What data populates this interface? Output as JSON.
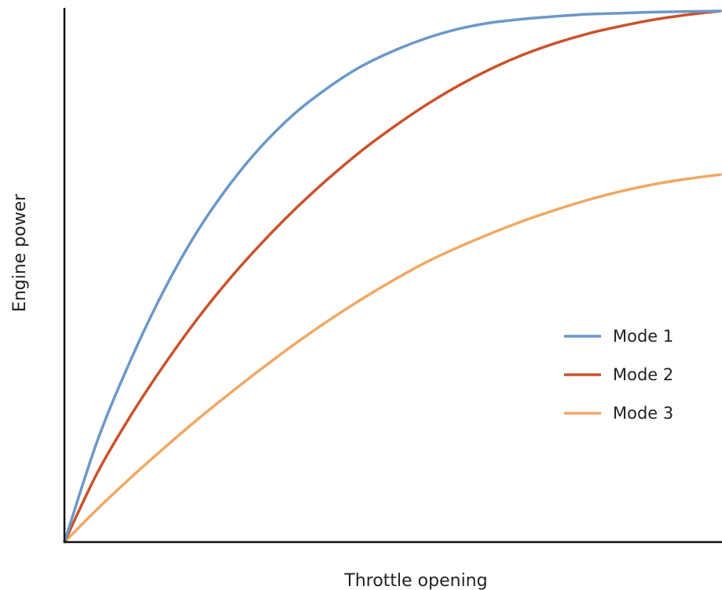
{
  "chart_data": {
    "type": "line",
    "title": "",
    "xlabel": "Throttle opening",
    "ylabel": "Engine power",
    "xlim": [
      0,
      100
    ],
    "ylim": [
      0,
      100
    ],
    "grid": false,
    "legend_position": "center-right",
    "series": [
      {
        "name": "Mode 1",
        "color": "#6b98c8",
        "x": [
          0,
          5,
          10,
          15,
          20,
          25,
          30,
          35,
          40,
          45,
          50,
          55,
          60,
          65,
          70,
          75,
          80,
          85,
          90,
          95,
          100
        ],
        "y": [
          0,
          19,
          34,
          47,
          58,
          67,
          74.5,
          80.6,
          85.4,
          89.4,
          92.4,
          94.8,
          96.6,
          97.8,
          98.5,
          99,
          99.4,
          99.6,
          99.8,
          99.9,
          100
        ]
      },
      {
        "name": "Mode 2",
        "color": "#c9532b",
        "x": [
          0,
          5,
          10,
          15,
          20,
          25,
          30,
          35,
          40,
          45,
          50,
          55,
          60,
          65,
          70,
          75,
          80,
          85,
          90,
          95,
          100
        ],
        "y": [
          0,
          13,
          23.6,
          33,
          41.6,
          49.3,
          56.2,
          62.5,
          68.2,
          73.4,
          78,
          82.2,
          85.9,
          89.1,
          91.8,
          94,
          95.8,
          97.2,
          98.4,
          99.3,
          100
        ]
      },
      {
        "name": "Mode 3",
        "color": "#f0a863",
        "x": [
          0,
          5,
          10,
          15,
          20,
          25,
          30,
          35,
          40,
          45,
          50,
          55,
          60,
          65,
          70,
          75,
          80,
          85,
          90,
          95,
          100
        ],
        "y": [
          0,
          6.2,
          12,
          17.5,
          22.8,
          27.8,
          32.6,
          37.2,
          41.5,
          45.5,
          49.2,
          52.6,
          55.5,
          58.1,
          60.5,
          62.6,
          64.5,
          66.1,
          67.4,
          68.4,
          69.2
        ]
      }
    ]
  }
}
